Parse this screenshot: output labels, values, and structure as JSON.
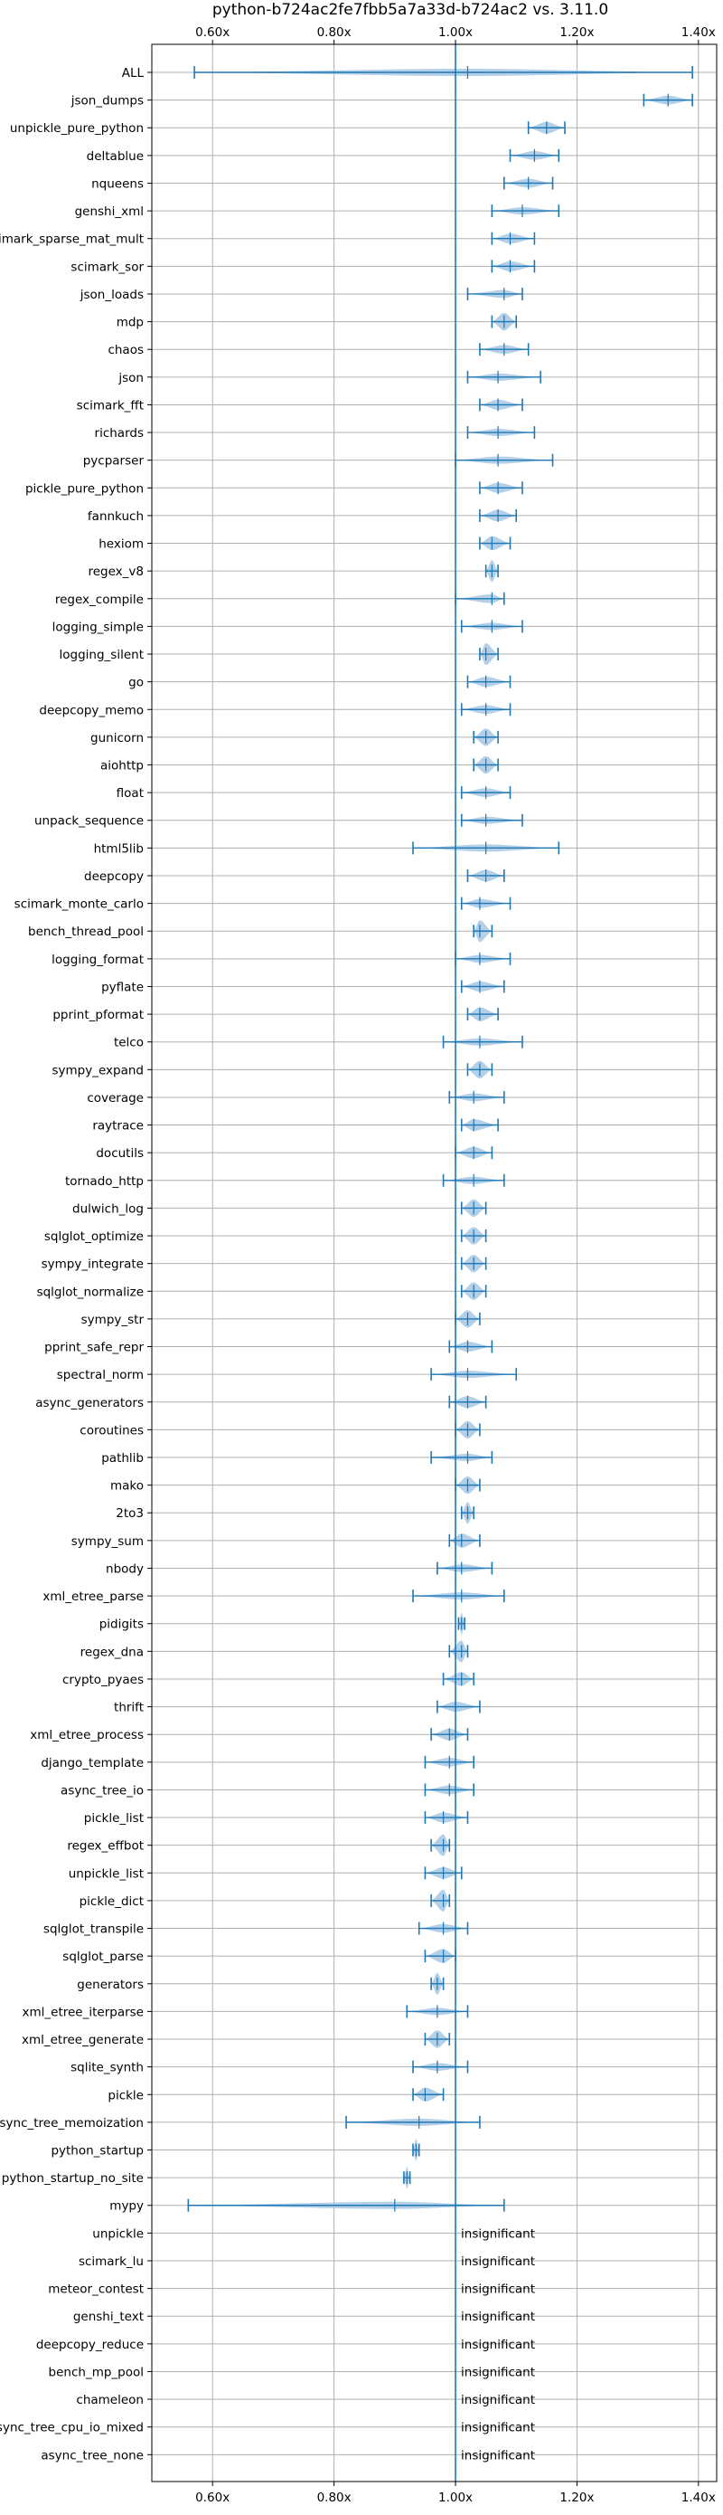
{
  "chart_data": {
    "type": "violin",
    "title": "python-b724ac2fe7fbb5a7a33d-b724ac2 vs. 3.11.0",
    "xlabel": "",
    "ylabel": "",
    "xlim": [
      0.5,
      1.43
    ],
    "xticks": [
      0.6,
      0.8,
      1.0,
      1.2,
      1.4
    ],
    "xtick_labels": [
      "0.60x",
      "0.80x",
      "1.00x",
      "1.20x",
      "1.40x"
    ],
    "reference_x": 1.0,
    "grid": true,
    "colors": {
      "violin": "#a6c8e4",
      "line": "#1f77b4",
      "grid": "#b0b0b0"
    },
    "insignificant_label": "insignificant",
    "benchmarks": [
      {
        "name": "ALL",
        "min": 0.57,
        "median": 1.02,
        "max": 1.39
      },
      {
        "name": "json_dumps",
        "min": 1.31,
        "median": 1.35,
        "max": 1.39
      },
      {
        "name": "unpickle_pure_python",
        "min": 1.12,
        "median": 1.15,
        "max": 1.18
      },
      {
        "name": "deltablue",
        "min": 1.09,
        "median": 1.13,
        "max": 1.17
      },
      {
        "name": "nqueens",
        "min": 1.08,
        "median": 1.12,
        "max": 1.16
      },
      {
        "name": "genshi_xml",
        "min": 1.06,
        "median": 1.11,
        "max": 1.17
      },
      {
        "name": "scimark_sparse_mat_mult",
        "min": 1.06,
        "median": 1.09,
        "max": 1.13
      },
      {
        "name": "scimark_sor",
        "min": 1.06,
        "median": 1.09,
        "max": 1.13
      },
      {
        "name": "json_loads",
        "min": 1.02,
        "median": 1.08,
        "max": 1.11
      },
      {
        "name": "mdp",
        "min": 1.06,
        "median": 1.08,
        "max": 1.1
      },
      {
        "name": "chaos",
        "min": 1.04,
        "median": 1.08,
        "max": 1.12
      },
      {
        "name": "json",
        "min": 1.02,
        "median": 1.07,
        "max": 1.14
      },
      {
        "name": "scimark_fft",
        "min": 1.04,
        "median": 1.07,
        "max": 1.11
      },
      {
        "name": "richards",
        "min": 1.02,
        "median": 1.07,
        "max": 1.13
      },
      {
        "name": "pycparser",
        "min": 1.0,
        "median": 1.07,
        "max": 1.16
      },
      {
        "name": "pickle_pure_python",
        "min": 1.04,
        "median": 1.07,
        "max": 1.11
      },
      {
        "name": "fannkuch",
        "min": 1.04,
        "median": 1.07,
        "max": 1.1
      },
      {
        "name": "hexiom",
        "min": 1.04,
        "median": 1.06,
        "max": 1.09
      },
      {
        "name": "regex_v8",
        "min": 1.05,
        "median": 1.06,
        "max": 1.07
      },
      {
        "name": "regex_compile",
        "min": 1.0,
        "median": 1.06,
        "max": 1.08
      },
      {
        "name": "logging_simple",
        "min": 1.01,
        "median": 1.06,
        "max": 1.11
      },
      {
        "name": "logging_silent",
        "min": 1.04,
        "median": 1.05,
        "max": 1.07
      },
      {
        "name": "go",
        "min": 1.02,
        "median": 1.05,
        "max": 1.09
      },
      {
        "name": "deepcopy_memo",
        "min": 1.01,
        "median": 1.05,
        "max": 1.09
      },
      {
        "name": "gunicorn",
        "min": 1.03,
        "median": 1.05,
        "max": 1.07
      },
      {
        "name": "aiohttp",
        "min": 1.03,
        "median": 1.05,
        "max": 1.07
      },
      {
        "name": "float",
        "min": 1.01,
        "median": 1.05,
        "max": 1.09
      },
      {
        "name": "unpack_sequence",
        "min": 1.01,
        "median": 1.05,
        "max": 1.11
      },
      {
        "name": "html5lib",
        "min": 0.93,
        "median": 1.05,
        "max": 1.17
      },
      {
        "name": "deepcopy",
        "min": 1.02,
        "median": 1.05,
        "max": 1.08
      },
      {
        "name": "scimark_monte_carlo",
        "min": 1.01,
        "median": 1.04,
        "max": 1.09
      },
      {
        "name": "bench_thread_pool",
        "min": 1.03,
        "median": 1.04,
        "max": 1.06
      },
      {
        "name": "logging_format",
        "min": 1.0,
        "median": 1.04,
        "max": 1.09
      },
      {
        "name": "pyflate",
        "min": 1.01,
        "median": 1.04,
        "max": 1.08
      },
      {
        "name": "pprint_pformat",
        "min": 1.02,
        "median": 1.04,
        "max": 1.07
      },
      {
        "name": "telco",
        "min": 0.98,
        "median": 1.04,
        "max": 1.11
      },
      {
        "name": "sympy_expand",
        "min": 1.02,
        "median": 1.04,
        "max": 1.06
      },
      {
        "name": "coverage",
        "min": 0.99,
        "median": 1.03,
        "max": 1.08
      },
      {
        "name": "raytrace",
        "min": 1.01,
        "median": 1.03,
        "max": 1.07
      },
      {
        "name": "docutils",
        "min": 1.0,
        "median": 1.03,
        "max": 1.06
      },
      {
        "name": "tornado_http",
        "min": 0.98,
        "median": 1.03,
        "max": 1.08
      },
      {
        "name": "dulwich_log",
        "min": 1.01,
        "median": 1.03,
        "max": 1.05
      },
      {
        "name": "sqlglot_optimize",
        "min": 1.01,
        "median": 1.03,
        "max": 1.05
      },
      {
        "name": "sympy_integrate",
        "min": 1.01,
        "median": 1.03,
        "max": 1.05
      },
      {
        "name": "sqlglot_normalize",
        "min": 1.01,
        "median": 1.03,
        "max": 1.05
      },
      {
        "name": "sympy_str",
        "min": 1.0,
        "median": 1.02,
        "max": 1.04
      },
      {
        "name": "pprint_safe_repr",
        "min": 0.99,
        "median": 1.02,
        "max": 1.06
      },
      {
        "name": "spectral_norm",
        "min": 0.96,
        "median": 1.02,
        "max": 1.1
      },
      {
        "name": "async_generators",
        "min": 0.99,
        "median": 1.02,
        "max": 1.05
      },
      {
        "name": "coroutines",
        "min": 1.0,
        "median": 1.02,
        "max": 1.04
      },
      {
        "name": "pathlib",
        "min": 0.96,
        "median": 1.02,
        "max": 1.06
      },
      {
        "name": "mako",
        "min": 1.0,
        "median": 1.02,
        "max": 1.04
      },
      {
        "name": "2to3",
        "min": 1.01,
        "median": 1.02,
        "max": 1.03
      },
      {
        "name": "sympy_sum",
        "min": 0.99,
        "median": 1.01,
        "max": 1.04
      },
      {
        "name": "nbody",
        "min": 0.97,
        "median": 1.01,
        "max": 1.06
      },
      {
        "name": "xml_etree_parse",
        "min": 0.93,
        "median": 1.01,
        "max": 1.08
      },
      {
        "name": "pidigits",
        "min": 1.005,
        "median": 1.01,
        "max": 1.015
      },
      {
        "name": "regex_dna",
        "min": 0.99,
        "median": 1.01,
        "max": 1.02
      },
      {
        "name": "crypto_pyaes",
        "min": 0.98,
        "median": 1.01,
        "max": 1.03
      },
      {
        "name": "thrift",
        "min": 0.97,
        "median": 1.0,
        "max": 1.04
      },
      {
        "name": "xml_etree_process",
        "min": 0.96,
        "median": 0.99,
        "max": 1.02
      },
      {
        "name": "django_template",
        "min": 0.95,
        "median": 0.99,
        "max": 1.03
      },
      {
        "name": "async_tree_io",
        "min": 0.95,
        "median": 0.99,
        "max": 1.03
      },
      {
        "name": "pickle_list",
        "min": 0.95,
        "median": 0.98,
        "max": 1.02
      },
      {
        "name": "regex_effbot",
        "min": 0.96,
        "median": 0.98,
        "max": 0.99
      },
      {
        "name": "unpickle_list",
        "min": 0.95,
        "median": 0.98,
        "max": 1.01
      },
      {
        "name": "pickle_dict",
        "min": 0.96,
        "median": 0.98,
        "max": 0.99
      },
      {
        "name": "sqlglot_transpile",
        "min": 0.94,
        "median": 0.98,
        "max": 1.02
      },
      {
        "name": "sqlglot_parse",
        "min": 0.95,
        "median": 0.98,
        "max": 1.0
      },
      {
        "name": "generators",
        "min": 0.96,
        "median": 0.97,
        "max": 0.98
      },
      {
        "name": "xml_etree_iterparse",
        "min": 0.92,
        "median": 0.97,
        "max": 1.02
      },
      {
        "name": "xml_etree_generate",
        "min": 0.95,
        "median": 0.97,
        "max": 0.99
      },
      {
        "name": "sqlite_synth",
        "min": 0.93,
        "median": 0.97,
        "max": 1.02
      },
      {
        "name": "pickle",
        "min": 0.93,
        "median": 0.95,
        "max": 0.98
      },
      {
        "name": "async_tree_memoization",
        "min": 0.82,
        "median": 0.94,
        "max": 1.04
      },
      {
        "name": "python_startup",
        "min": 0.93,
        "median": 0.935,
        "max": 0.94
      },
      {
        "name": "python_startup_no_site",
        "min": 0.915,
        "median": 0.92,
        "max": 0.925
      },
      {
        "name": "mypy",
        "min": 0.56,
        "median": 0.9,
        "max": 1.08
      },
      {
        "name": "unpickle",
        "insignificant": true
      },
      {
        "name": "scimark_lu",
        "insignificant": true
      },
      {
        "name": "meteor_contest",
        "insignificant": true
      },
      {
        "name": "genshi_text",
        "insignificant": true
      },
      {
        "name": "deepcopy_reduce",
        "insignificant": true
      },
      {
        "name": "bench_mp_pool",
        "insignificant": true
      },
      {
        "name": "chameleon",
        "insignificant": true
      },
      {
        "name": "async_tree_cpu_io_mixed",
        "insignificant": true
      },
      {
        "name": "async_tree_none",
        "insignificant": true
      }
    ]
  }
}
